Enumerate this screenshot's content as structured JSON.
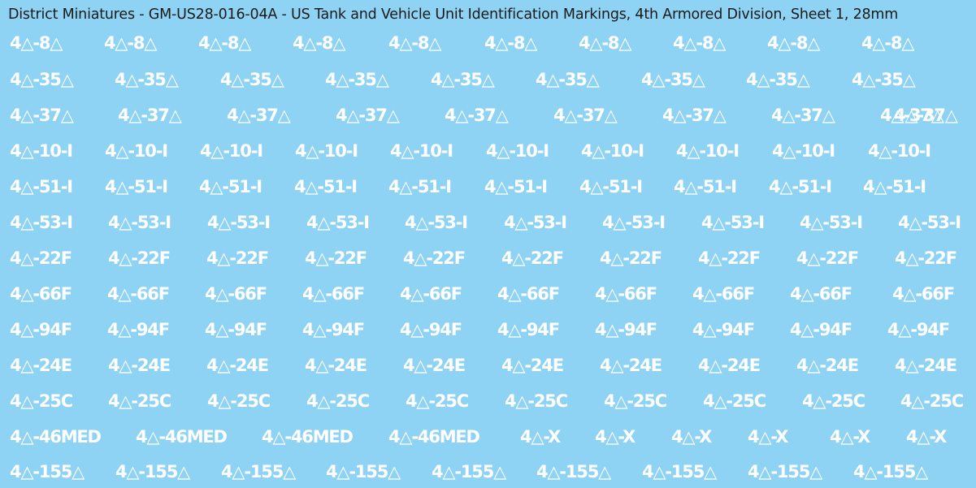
{
  "sheet": {
    "title": "District Miniatures - GM-US28-016-04A - US Tank and Vehicle Unit Identification Markings, 4th Armored Division, Sheet 1, 28mm",
    "background_color": "#8fd3f4",
    "text_color": "#ffffff"
  },
  "rows": [
    {
      "marks": [
        "4△-8△",
        "4△-8△",
        "4△-8△",
        "4△-8△",
        "4△-8△",
        "4△-8△",
        "4△-8△",
        "4△-8△",
        "4△-8△",
        "4△-8△"
      ]
    },
    {
      "marks": [
        "4△-35△",
        "4△-35△",
        "4△-35△",
        "4△-35△",
        "4△-35△",
        "4△-35△",
        "4△-35△",
        "4△-35△",
        "4△-35△"
      ]
    },
    {
      "marks": [
        "4△-37△",
        "4△-37△",
        "4△-37△",
        "4△-37△",
        "4△-37△",
        "4△-37△",
        "4△-37△",
        "4△-37△",
        "4△-37△",
        "4△-37△"
      ]
    },
    {
      "marks": [
        "4△-10-I",
        "4△-10-I",
        "4△-10-I",
        "4△-10-I",
        "4△-10-I",
        "4△-10-I",
        "4△-10-I",
        "4△-10-I",
        "4△-10-I",
        "4△-10-I"
      ]
    },
    {
      "marks": [
        "4△-51-I",
        "4△-51-I",
        "4△-51-I",
        "4△-51-I",
        "4△-51-I",
        "4△-51-I",
        "4△-51-I",
        "4△-51-I",
        "4△-51-I",
        "4△-51-I"
      ]
    },
    {
      "marks": [
        "4△-53-I",
        "4△-53-I",
        "4△-53-I",
        "4△-53-I",
        "4△-53-I",
        "4△-53-I",
        "4△-53-I",
        "4△-53-I",
        "4△-53-I",
        "4△-53-I"
      ]
    },
    {
      "marks": [
        "4△-22F",
        "4△-22F",
        "4△-22F",
        "4△-22F",
        "4△-22F",
        "4△-22F",
        "4△-22F",
        "4△-22F",
        "4△-22F",
        "4△-22F"
      ]
    },
    {
      "marks": [
        "4△-66F",
        "4△-66F",
        "4△-66F",
        "4△-66F",
        "4△-66F",
        "4△-66F",
        "4△-66F",
        "4△-66F",
        "4△-66F",
        "4△-66F"
      ]
    },
    {
      "marks": [
        "4△-94F",
        "4△-94F",
        "4△-94F",
        "4△-94F",
        "4△-94F",
        "4△-94F",
        "4△-94F",
        "4△-94F",
        "4△-94F",
        "4△-94F"
      ]
    },
    {
      "marks": [
        "4△-24E",
        "4△-24E",
        "4△-24E",
        "4△-24E",
        "4△-24E",
        "4△-24E",
        "4△-24E",
        "4△-24E",
        "4△-24E",
        "4△-24E"
      ]
    },
    {
      "marks": [
        "4△-25C",
        "4△-25C",
        "4△-25C",
        "4△-25C",
        "4△-25C",
        "4△-25C",
        "4△-25C",
        "4△-25C",
        "4△-25C",
        "4△-25C"
      ]
    },
    {
      "marks": [
        "4△-46MED",
        "4△-46MED",
        "4△-46MED",
        "4△-46MED",
        "4△-X",
        "4△-X",
        "4△-X",
        "4△-X",
        "4△-X",
        "4△-X"
      ]
    },
    {
      "marks": [
        "4△-155△",
        "4△-155△",
        "4△-155△",
        "4△-155△",
        "4△-155△",
        "4△-155△",
        "4△-155△",
        "4△-155△",
        "4△-155△"
      ]
    }
  ]
}
